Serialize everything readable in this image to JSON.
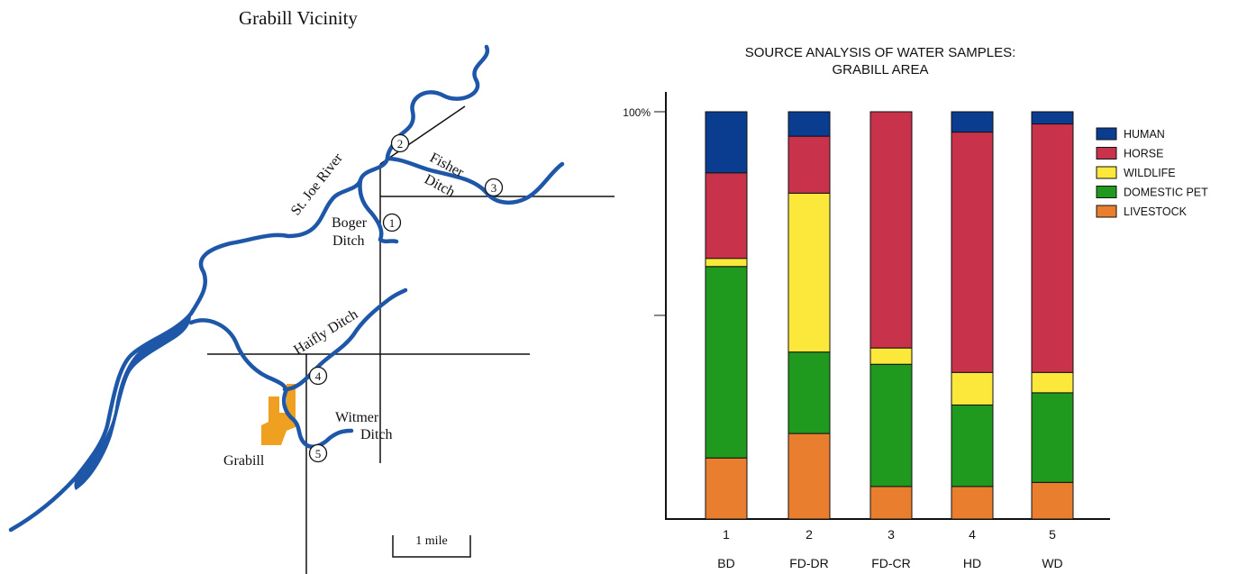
{
  "map": {
    "title": "Grabill Vicinity",
    "labels": {
      "river": "St. Joe River",
      "fisher_line1": "Fisher",
      "fisher_line2": "Ditch",
      "boger_line1": "Boger",
      "boger_line2": "Ditch",
      "haifly": "Haifly Ditch",
      "witmer_line1": "Witmer",
      "witmer_line2": "Ditch",
      "town": "Grabill",
      "scale": "1 mile"
    },
    "sites": [
      "1",
      "2",
      "3",
      "4",
      "5"
    ],
    "colors": {
      "water": "#1f57a8",
      "town": "#f0a020"
    }
  },
  "chart_data": {
    "type": "bar",
    "stacked": true,
    "title_line1": "SOURCE ANALYSIS OF WATER SAMPLES:",
    "title_line2": "GRABILL AREA",
    "y_tick_label": "100%",
    "ylim": [
      0,
      100
    ],
    "x": [
      "1",
      "2",
      "3",
      "4",
      "5"
    ],
    "categories": [
      "BD",
      "FD-DR",
      "FD-CR",
      "HD",
      "WD"
    ],
    "series": [
      {
        "name": "LIVESTOCK",
        "color": "#e97f2e",
        "values": [
          15,
          21,
          8,
          8,
          9
        ]
      },
      {
        "name": "DOMESTIC PET",
        "color": "#1f9a1f",
        "values": [
          47,
          20,
          30,
          20,
          22
        ]
      },
      {
        "name": "WILDLIFE",
        "color": "#fce83a",
        "values": [
          2,
          39,
          4,
          8,
          5
        ]
      },
      {
        "name": "HORSE",
        "color": "#c8334b",
        "values": [
          21,
          14,
          58,
          59,
          61
        ]
      },
      {
        "name": "HUMAN",
        "color": "#0a3d8f",
        "values": [
          15,
          6,
          0,
          5,
          3
        ]
      }
    ],
    "legend": [
      "HUMAN",
      "HORSE",
      "WILDLIFE",
      "DOMESTIC PET",
      "LIVESTOCK"
    ],
    "legend_position": "right",
    "grid": false
  }
}
